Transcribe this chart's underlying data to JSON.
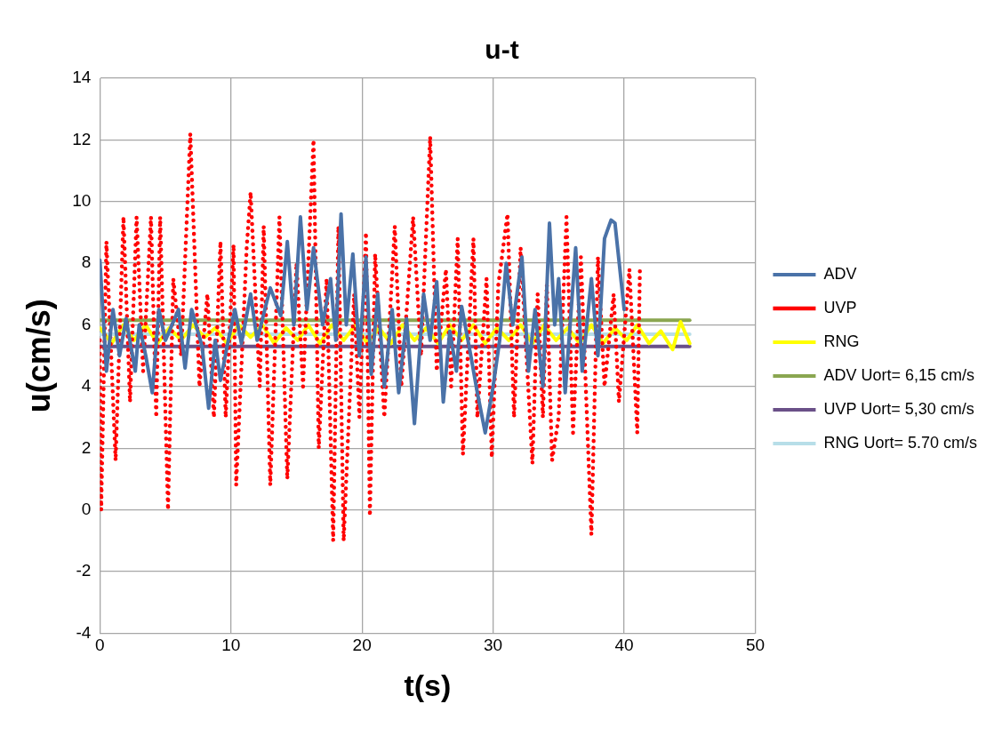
{
  "chart_data": {
    "type": "line",
    "title": "u-t",
    "xlabel": "t(s)",
    "ylabel": "u(cm/s)",
    "xlim": [
      0,
      50
    ],
    "xticks": [
      0,
      10,
      20,
      30,
      40,
      50
    ],
    "ylim": [
      -4,
      14
    ],
    "yticks": [
      -4,
      -2,
      0,
      2,
      4,
      6,
      8,
      10,
      12,
      14
    ],
    "grid": true,
    "legend": "right",
    "marker": "none",
    "series": [
      {
        "name": "ADV",
        "color": "#4a72a8",
        "line_style": "solid",
        "x": [
          0,
          0.5,
          1,
          1.5,
          2,
          2.7,
          3,
          3.5,
          4,
          4.5,
          5,
          6,
          6.5,
          7,
          7.8,
          8.3,
          8.8,
          9.2,
          9.8,
          10.3,
          10.8,
          11.5,
          12,
          13,
          13.8,
          14.3,
          14.8,
          15.3,
          15.8,
          16.3,
          17,
          17.6,
          18,
          18.4,
          18.8,
          19.3,
          19.8,
          20.3,
          20.7,
          21.2,
          21.7,
          22.3,
          22.8,
          23.4,
          24,
          24.7,
          25.2,
          25.7,
          26.2,
          26.7,
          27.2,
          27.6,
          28.3,
          28.8,
          29.4,
          30,
          30.5,
          31,
          31.5,
          32.2,
          32.7,
          33.2,
          33.8,
          34.3,
          34.7,
          35,
          35.5,
          36.3,
          36.8,
          37.5,
          38,
          38.5,
          39,
          39.3,
          40
        ],
        "values": [
          8.1,
          4.5,
          6.5,
          5,
          6.2,
          4.5,
          6,
          5,
          3.8,
          6.5,
          5.5,
          6.5,
          4.6,
          6.5,
          5.3,
          3.3,
          5.5,
          4.2,
          5.5,
          6.5,
          5.4,
          7,
          5.5,
          7.2,
          6.3,
          8.7,
          6,
          9.5,
          6.5,
          8.5,
          6,
          7.5,
          5.5,
          9.6,
          6,
          8.3,
          5,
          8.2,
          4.4,
          7,
          4,
          6.5,
          3.8,
          6.2,
          2.8,
          7,
          5.5,
          7.4,
          3.5,
          5.8,
          4.5,
          6.6,
          5,
          3.8,
          2.5,
          4,
          5.5,
          8,
          6,
          8.2,
          4.5,
          6.5,
          4,
          9.3,
          6,
          7.5,
          3.8,
          8.5,
          4.5,
          7.5,
          5,
          8.8,
          9.4,
          9.3,
          6.5
        ]
      },
      {
        "name": "UVP",
        "color": "#ff0000",
        "line_style": "dotted",
        "x": [
          0,
          0.1,
          0.5,
          1.2,
          1.8,
          2.3,
          2.8,
          3.3,
          3.9,
          4.3,
          4.6,
          5.2,
          5.6,
          6.2,
          6.9,
          7.6,
          8.2,
          8.7,
          9.2,
          9.6,
          10.2,
          10.4,
          11.2,
          11.5,
          12.2,
          12.5,
          13,
          13.7,
          14.3,
          15,
          15.5,
          16.3,
          16.7,
          17.3,
          17.8,
          18.2,
          18.6,
          19.4,
          19.8,
          20.3,
          20.6,
          21,
          21.7,
          22.5,
          23,
          23.9,
          24.5,
          25.2,
          25.7,
          26.4,
          26.8,
          27.3,
          27.7,
          28.5,
          28.8,
          29.5,
          29.9,
          30.4,
          31.1,
          31.6,
          32.1,
          33,
          33.4,
          33.8,
          34.1,
          34.5,
          35,
          35.6,
          36.1,
          36.7,
          37.5,
          38,
          38.5,
          39.2,
          39.6,
          40.4,
          41,
          41.2
        ],
        "values": [
          5.5,
          0,
          8.7,
          1.6,
          9.5,
          3.5,
          9.5,
          4.5,
          9.5,
          3,
          9.5,
          0,
          7.5,
          5,
          12.2,
          4,
          7,
          3,
          8.7,
          3,
          8.6,
          0.8,
          8.5,
          10.3,
          4,
          9.2,
          0.8,
          9.5,
          1,
          8,
          4,
          12,
          2,
          7.5,
          -1,
          9.2,
          -1,
          7,
          3,
          9,
          -0.2,
          8.3,
          3,
          9.2,
          4,
          9.5,
          5,
          12.1,
          4.5,
          7.8,
          4,
          8.8,
          1.8,
          8.8,
          3,
          7.5,
          1.7,
          7.3,
          9.6,
          3,
          8.5,
          1.5,
          7,
          3,
          7.3,
          1.6,
          3,
          9.5,
          2.5,
          8.2,
          -0.8,
          8.2,
          4,
          7,
          3.5,
          7.8,
          2.5,
          7.8
        ]
      },
      {
        "name": "RNG",
        "color": "#ffff00",
        "line_style": "solid",
        "x": [
          0,
          0.9,
          1.8,
          2.6,
          3.5,
          4.4,
          5.3,
          6.2,
          7.1,
          8,
          8.8,
          9.7,
          10.6,
          11.5,
          12.4,
          13.3,
          14.2,
          15.1,
          15.9,
          16.8,
          17.7,
          18.6,
          19.5,
          20.4,
          21.3,
          22.2,
          23.1,
          24,
          24.9,
          25.8,
          26.7,
          27.6,
          28.5,
          29.4,
          30.3,
          31.2,
          32.1,
          33,
          33.9,
          34.8,
          35.7,
          36.6,
          37.5,
          38.4,
          39.3,
          40.2,
          41,
          41.9,
          42.8,
          43.7,
          44.3,
          45
        ],
        "values": [
          5.9,
          5.4,
          6,
          5.5,
          6,
          5.4,
          5.9,
          5.5,
          6,
          5.6,
          5.9,
          5.4,
          6,
          5.6,
          6,
          5.4,
          5.9,
          5.5,
          6,
          5.4,
          6,
          5.5,
          6,
          5.4,
          5.9,
          5.4,
          6,
          5.5,
          5.9,
          5.4,
          6,
          5.5,
          6,
          5.4,
          5.9,
          5.5,
          6,
          5.4,
          6,
          5.5,
          5.9,
          5.4,
          6,
          5.4,
          5.9,
          5.5,
          6,
          5.4,
          5.8,
          5.2,
          6.1,
          5.4
        ]
      },
      {
        "name": "ADV Uort= 6,15 cm/s",
        "color": "#8aa650",
        "line_style": "solid",
        "x": [
          0,
          45
        ],
        "values": [
          6.15,
          6.15
        ]
      },
      {
        "name": "UVP Uort= 5,30 cm/s",
        "color": "#6a5088",
        "line_style": "solid",
        "x": [
          0,
          45
        ],
        "values": [
          5.3,
          5.3
        ]
      },
      {
        "name": "RNG Uort= 5.70 cm/s",
        "color": "#b7dee8",
        "line_style": "solid",
        "x": [
          0,
          45
        ],
        "values": [
          5.7,
          5.7
        ]
      }
    ]
  }
}
